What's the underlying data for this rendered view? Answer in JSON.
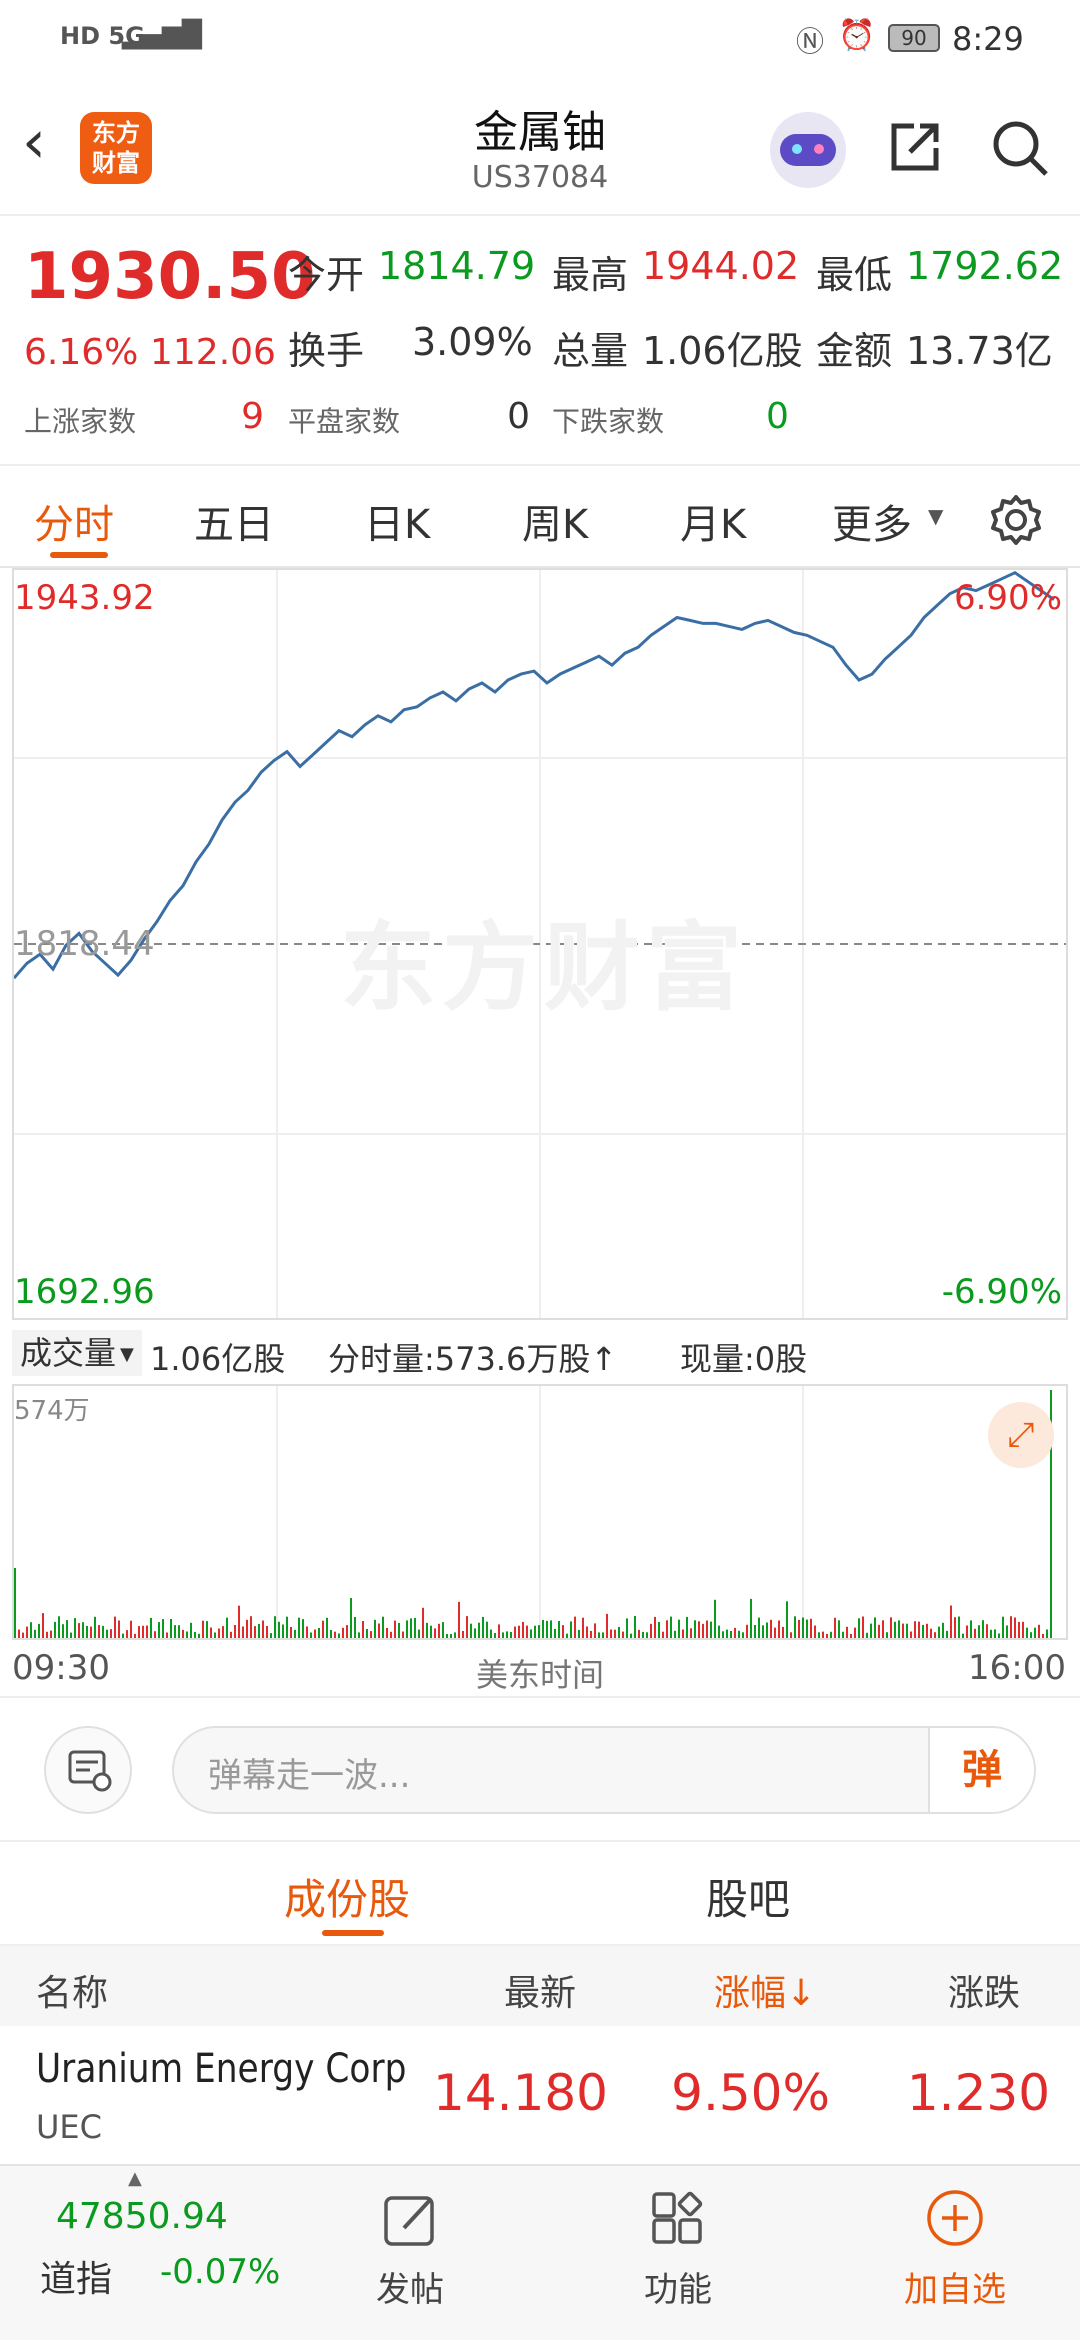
{
  "status": {
    "left_icons": "HD 5G",
    "battery": "90",
    "time": "8:29"
  },
  "header": {
    "title": "金属铀",
    "code": "US37084",
    "logo_text": "东方财富"
  },
  "quote": {
    "price": "1930.50",
    "change_pct": "6.16%",
    "change_abs": "112.06",
    "open_label": "今开",
    "open": "1814.79",
    "high_label": "最高",
    "high": "1944.02",
    "low_label": "最低",
    "low": "1792.62",
    "turnover_label": "换手",
    "turnover": "3.09%",
    "volume_label": "总量",
    "volume": "1.06亿股",
    "amount_label": "金额",
    "amount": "13.73亿",
    "up_label": "上涨家数",
    "up": "9",
    "flat_label": "平盘家数",
    "flat": "0",
    "down_label": "下跌家数",
    "down": "0"
  },
  "tabs": [
    "分时",
    "五日",
    "日K",
    "周K",
    "月K",
    "更多"
  ],
  "chart": {
    "top_price": "1943.92",
    "top_pct": "6.90%",
    "mid_price": "1818.44",
    "bottom_price": "1692.96",
    "bottom_pct": "-6.90%",
    "watermark": "东方财富"
  },
  "chart_data": {
    "type": "line",
    "ylim": [
      1692.96,
      1943.92
    ],
    "baseline": 1818.44,
    "values": [
      1807,
      1812,
      1815,
      1810,
      1818,
      1822,
      1816,
      1812,
      1808,
      1813,
      1820,
      1826,
      1833,
      1838,
      1846,
      1852,
      1860,
      1866,
      1870,
      1876,
      1880,
      1883,
      1878,
      1882,
      1886,
      1890,
      1888,
      1892,
      1895,
      1893,
      1897,
      1898,
      1901,
      1903,
      1900,
      1904,
      1906,
      1903,
      1907,
      1909,
      1910,
      1906,
      1909,
      1911,
      1913,
      1915,
      1912,
      1916,
      1918,
      1922,
      1925,
      1928,
      1927,
      1926,
      1926,
      1925,
      1924,
      1926,
      1927,
      1925,
      1923,
      1922,
      1920,
      1918,
      1912,
      1907,
      1909,
      1914,
      1918,
      1922,
      1928,
      1932,
      1936,
      1938,
      1937,
      1939,
      1941,
      1943,
      1940,
      1937,
      1934
    ]
  },
  "volume": {
    "selector": "成交量",
    "total": "1.06亿股",
    "tick_label": "分时量:573.6万股↑",
    "now_label": "现量:0股",
    "max_label": "574万"
  },
  "time_axis": {
    "start": "09:30",
    "mid": "美东时间",
    "end": "16:00"
  },
  "danmu": {
    "placeholder": "弹幕走一波...",
    "send": "弹"
  },
  "subtabs": [
    "成份股",
    "股吧"
  ],
  "table": {
    "headers": [
      "名称",
      "最新",
      "涨幅↓",
      "涨跌"
    ],
    "rows": [
      {
        "name": "Uranium Energy Corp",
        "code": "UEC",
        "last": "14.180",
        "pct": "9.50%",
        "chg": "1.230"
      }
    ]
  },
  "bottom": {
    "index_value": "47850.94",
    "index_name": "道指",
    "index_pct": "-0.07%",
    "post": "发帖",
    "func": "功能",
    "add": "加自选"
  }
}
